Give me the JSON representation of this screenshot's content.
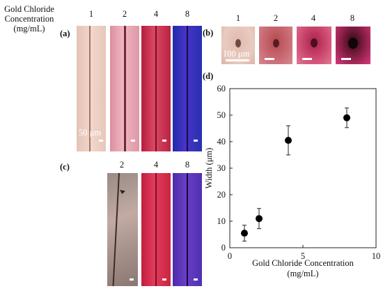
{
  "header": {
    "concentration_line1": "Gold Chloride",
    "concentration_line2": "Concentration",
    "concentration_line3": "(mg/mL)"
  },
  "panel_a": {
    "label": "(a)",
    "columns": [
      "1",
      "2",
      "4",
      "8"
    ],
    "scale_label": "50 μm"
  },
  "panel_b": {
    "label": "(b)",
    "columns": [
      "1",
      "2",
      "4",
      "8"
    ],
    "scale_label": "100 μm"
  },
  "panel_c": {
    "label": "(c)",
    "columns": [
      "2",
      "4",
      "8"
    ]
  },
  "panel_d": {
    "label": "(d)"
  },
  "chart_data": {
    "type": "scatter",
    "xlabel_line1": "Gold Chloride Concentration",
    "xlabel_line2": "(mg/mL)",
    "ylabel": "Width (μm)",
    "xlim": [
      0,
      10
    ],
    "ylim": [
      0,
      60
    ],
    "x_ticks": [
      "0",
      "5",
      "10"
    ],
    "y_ticks": [
      "0",
      "10",
      "20",
      "30",
      "40",
      "50",
      "60"
    ],
    "points": [
      {
        "x": 1,
        "y": 5.5,
        "err": 3
      },
      {
        "x": 2,
        "y": 11,
        "err": 3.8
      },
      {
        "x": 4,
        "y": 40.5,
        "err": 5.5
      },
      {
        "x": 8,
        "y": 49,
        "err": 3.7
      }
    ],
    "grid": false
  }
}
